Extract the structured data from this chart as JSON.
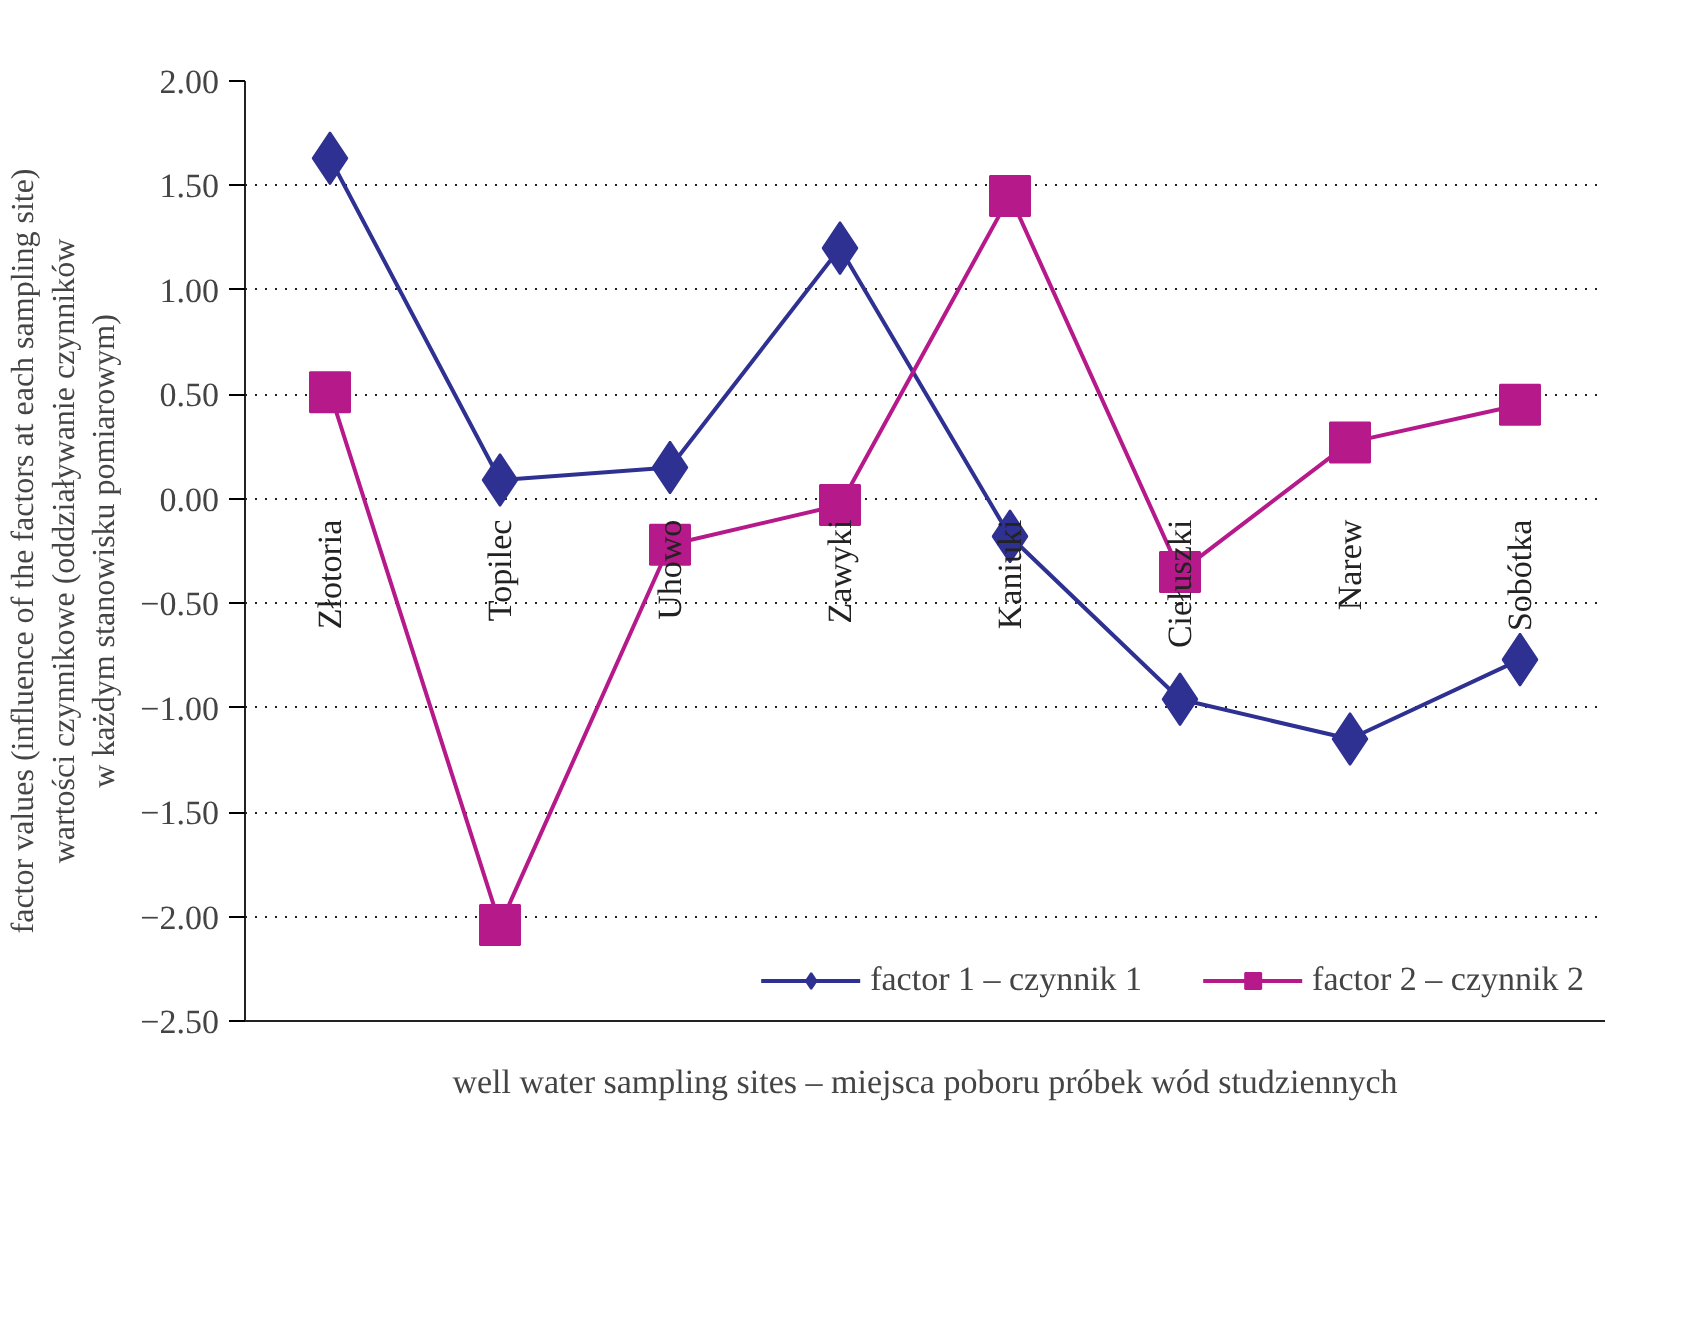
{
  "chart_data": {
    "type": "line",
    "xlabel": "well water sampling sites – miejsca poboru próbek wód studziennych",
    "ylabel": "factor values (influence of the factors at each sampling site)\nwartości czynnikowe (oddziaływanie czynników\nw każdym stanowisku pomiarowym)",
    "categories": [
      "Złotoria",
      "Topilec",
      "Uhowo",
      "Zawyki",
      "Kaniuki",
      "Ciełuszki",
      "Narew",
      "Sobótka"
    ],
    "series": [
      {
        "name": "factor 1 – czynnik 1",
        "color": "#2e3192",
        "marker": "diamond",
        "values": [
          1.63,
          0.09,
          0.15,
          1.2,
          -0.18,
          -0.96,
          -1.15,
          -0.77
        ]
      },
      {
        "name": "factor 2 – czynnik 2",
        "color": "#b5198a",
        "marker": "square",
        "values": [
          0.51,
          -2.04,
          -0.22,
          -0.03,
          1.45,
          -0.35,
          0.27,
          0.45
        ]
      }
    ],
    "ylim": [
      -2.5,
      2.0
    ],
    "yticks": [
      {
        "value": -2.5,
        "label": "−2.50"
      },
      {
        "value": -2.0,
        "label": "−2.00"
      },
      {
        "value": -1.5,
        "label": "−1.50"
      },
      {
        "value": -1.0,
        "label": "−1.00"
      },
      {
        "value": -0.5,
        "label": "−0.50"
      },
      {
        "value": 0,
        "label": "0.00"
      },
      {
        "value": 0.5,
        "label": "0.50"
      },
      {
        "value": 1.0,
        "label": "1.00"
      },
      {
        "value": 1.5,
        "label": "1.50"
      },
      {
        "value": 2.0,
        "label": "2.00"
      }
    ],
    "grid": "y",
    "legend": "bottom right",
    "line_style": "solid"
  }
}
